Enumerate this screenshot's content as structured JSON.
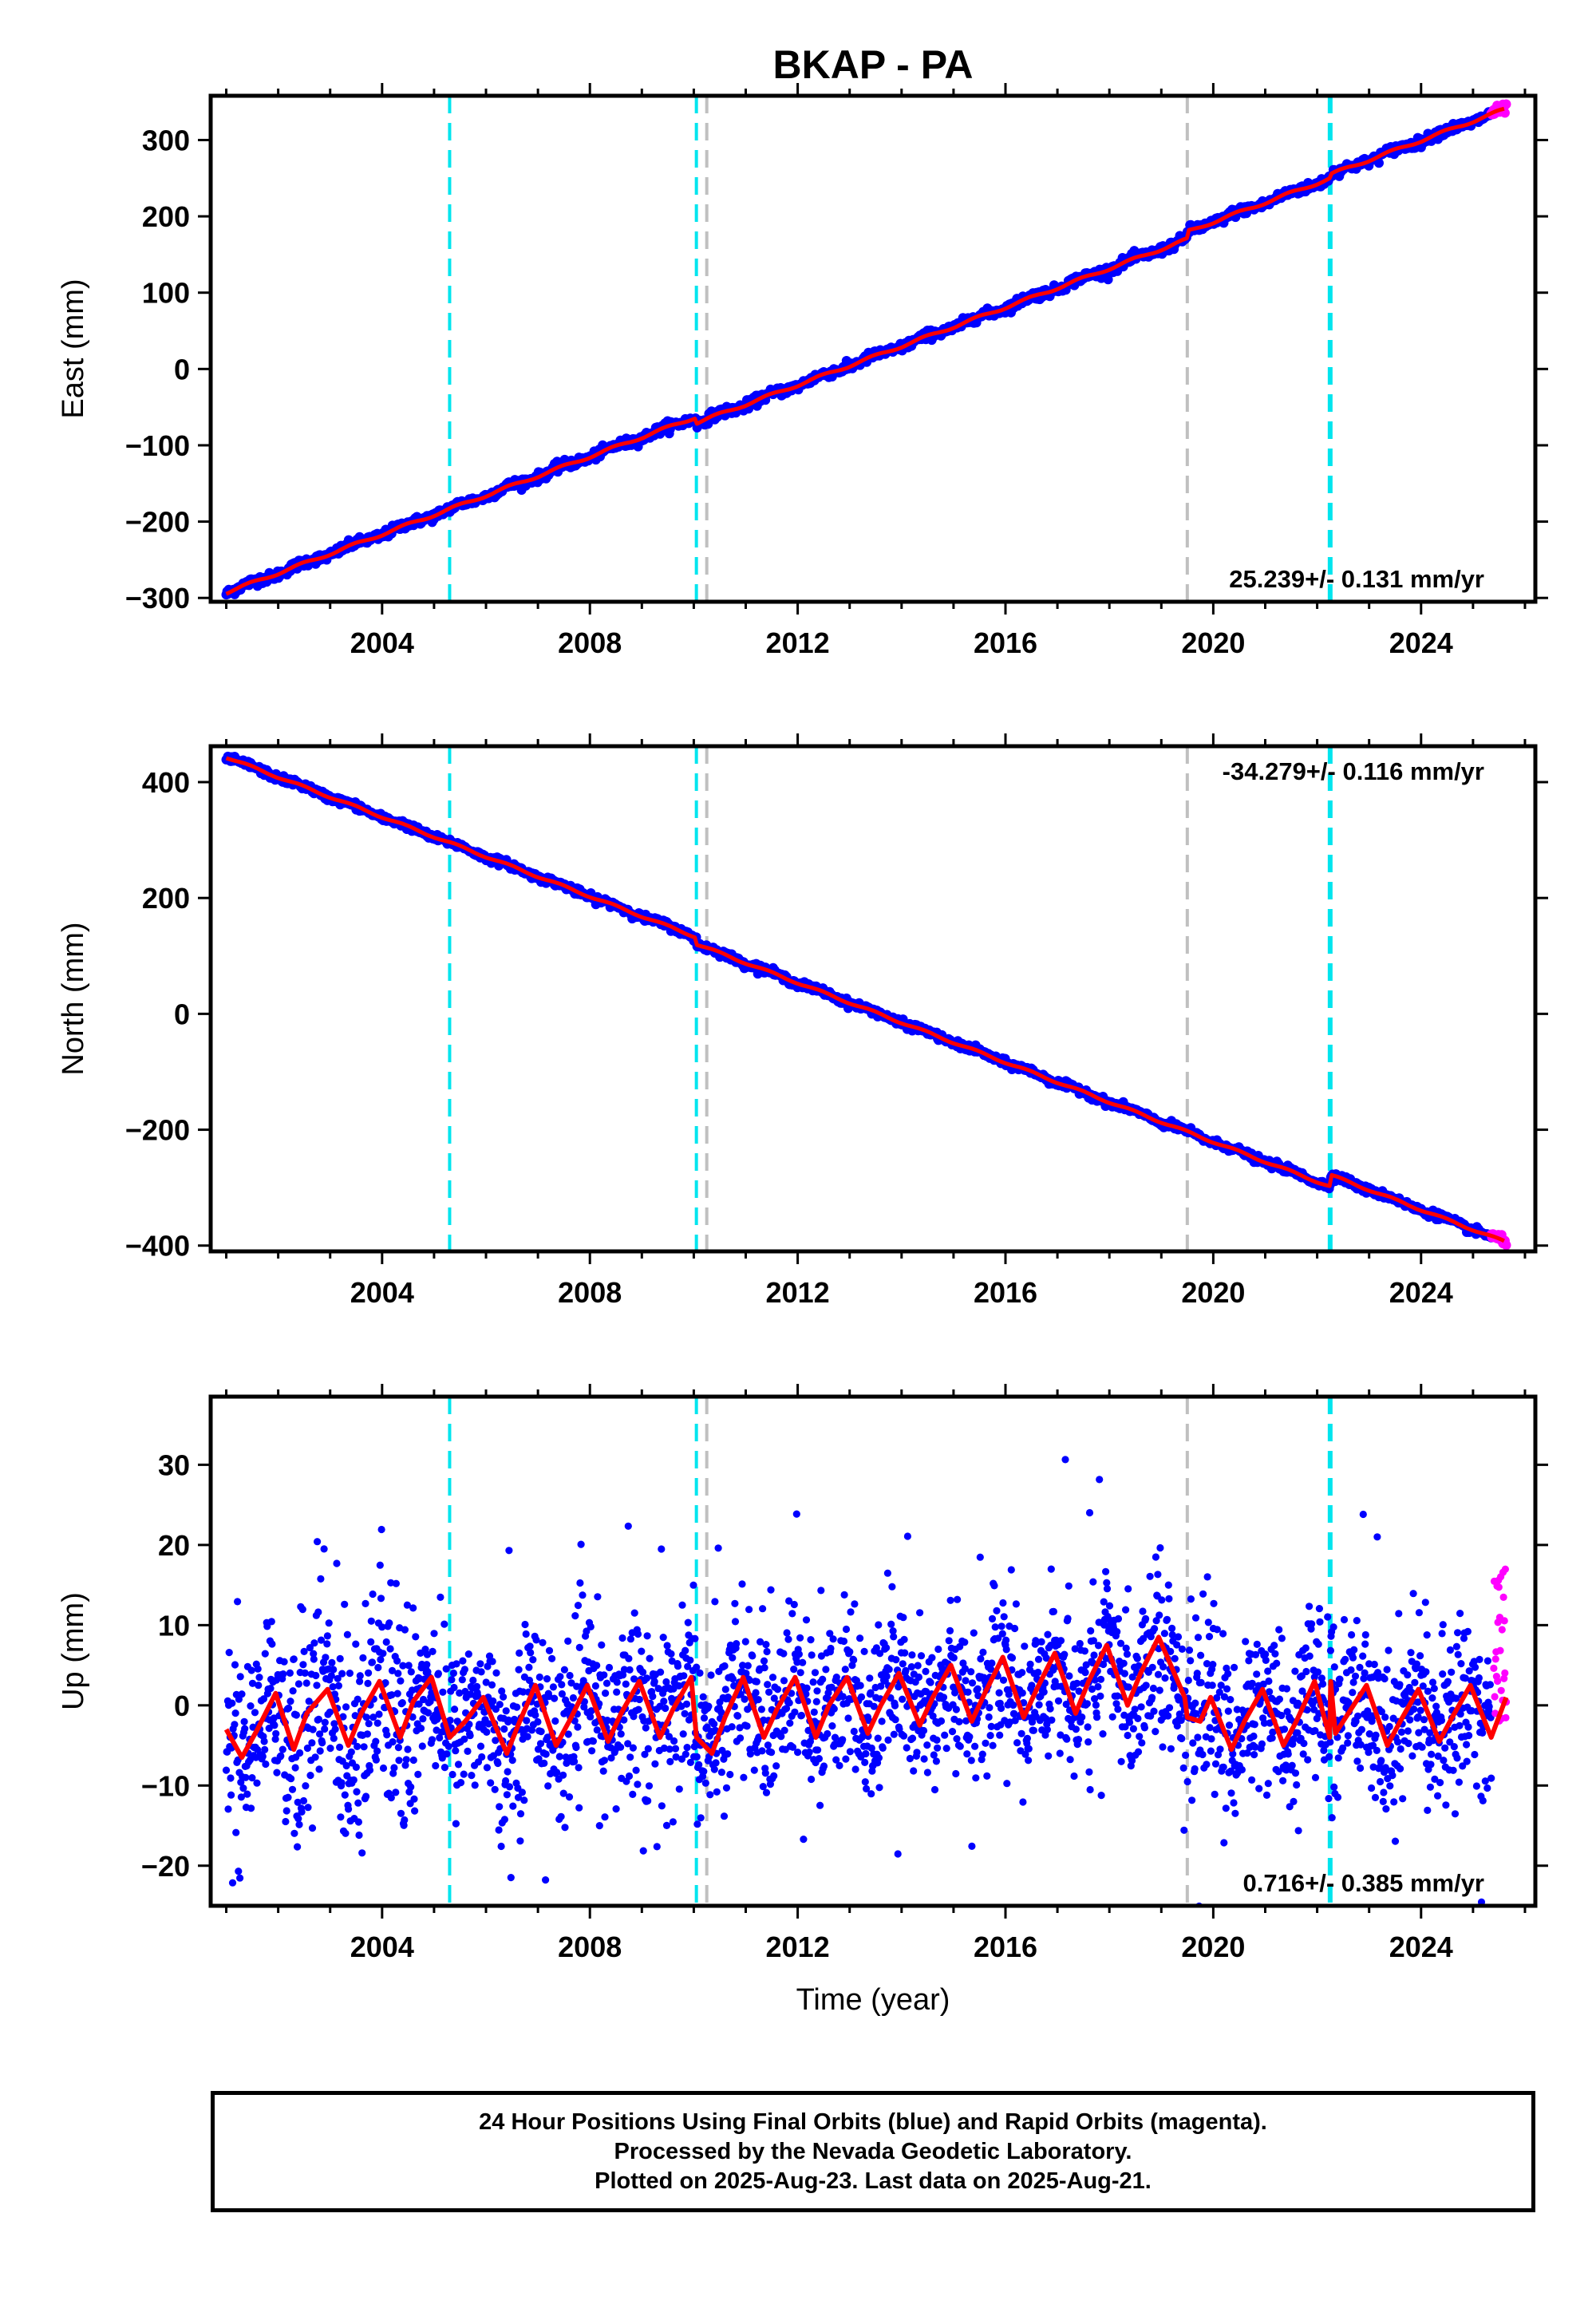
{
  "title": "BKAP - PA",
  "xlabel": "Time (year)",
  "footer": {
    "line1": "24 Hour Positions Using Final Orbits (blue) and Rapid Orbits (magenta).",
    "line2": "Processed by the Nevada Geodetic Laboratory.",
    "line3": "Plotted on 2025-Aug-23. Last data on 2025-Aug-21."
  },
  "colors": {
    "final_orbits": "#0000ff",
    "rapid_orbits": "#ff00ff",
    "model": "#ff0000",
    "equipment_change": "#00e5ee",
    "earthquake": "#c0c0c0"
  },
  "chart_data": [
    {
      "type": "scatter",
      "panel": "east",
      "ylabel": "East (mm)",
      "xlim": [
        2000.7,
        2026.2
      ],
      "ylim": [
        -305,
        358
      ],
      "xticks": [
        2004,
        2008,
        2012,
        2016,
        2020,
        2024
      ],
      "xticklabels": [
        "2004",
        "2008",
        "2012",
        "2016",
        "2020",
        "2024"
      ],
      "yticks": [
        -300,
        -200,
        -100,
        0,
        100,
        200,
        300
      ],
      "yticklabels": [
        "−300",
        "−200",
        "−100",
        "0",
        "100",
        "200",
        "300"
      ],
      "rate_label": "25.239+/- 0.131 mm/yr",
      "rate_label_position": "bottom-right",
      "start": [
        2001.0,
        -293
      ],
      "end": [
        2025.6,
        340
      ],
      "offsets": [
        [
          2010.05,
          -8
        ],
        [
          2019.5,
          10
        ],
        [
          2022.25,
          5
        ]
      ],
      "series": [
        {
          "name": "Final Orbits (blue)",
          "x_range": [
            2001.0,
            2025.35
          ],
          "scatter_mm": 3
        },
        {
          "name": "Rapid Orbits (magenta)",
          "x_range": [
            2025.35,
            2025.64
          ],
          "scatter_mm": 3
        }
      ]
    },
    {
      "type": "scatter",
      "panel": "north",
      "ylabel": "North (mm)",
      "xlim": [
        2000.7,
        2026.2
      ],
      "ylim": [
        -410,
        462
      ],
      "xticks": [
        2004,
        2008,
        2012,
        2016,
        2020,
        2024
      ],
      "xticklabels": [
        "2004",
        "2008",
        "2012",
        "2016",
        "2020",
        "2024"
      ],
      "yticks": [
        -400,
        -200,
        0,
        200,
        400
      ],
      "yticklabels": [
        "−400",
        "−200",
        "0",
        "200",
        "400"
      ],
      "rate_label": "-34.279+/- 0.116 mm/yr",
      "rate_label_position": "top-right",
      "start": [
        2001.0,
        443
      ],
      "end": [
        2025.6,
        -393
      ],
      "offsets": [
        [
          2010.05,
          -12
        ],
        [
          2022.25,
          20
        ]
      ],
      "series": [
        {
          "name": "Final Orbits (blue)",
          "x_range": [
            2001.0,
            2025.35
          ],
          "scatter_mm": 3
        },
        {
          "name": "Rapid Orbits (magenta)",
          "x_range": [
            2025.35,
            2025.64
          ],
          "scatter_mm": 3
        }
      ]
    },
    {
      "type": "scatter",
      "panel": "up",
      "ylabel": "Up (mm)",
      "xlim": [
        2000.7,
        2026.2
      ],
      "ylim": [
        -25,
        38.5
      ],
      "xticks": [
        2004,
        2008,
        2012,
        2016,
        2020,
        2024
      ],
      "xticklabels": [
        "2004",
        "2008",
        "2012",
        "2016",
        "2020",
        "2024"
      ],
      "yticks": [
        -20,
        -10,
        0,
        10,
        20,
        30
      ],
      "yticklabels": [
        "−20",
        "−10",
        "0",
        "10",
        "20",
        "30"
      ],
      "rate_label": "0.716+/- 0.385 mm/yr",
      "rate_label_position": "bottom-right",
      "model_trace": [
        [
          2001.0,
          -3.0
        ],
        [
          2001.3,
          -6.5
        ],
        [
          2001.6,
          -3.0
        ],
        [
          2001.95,
          1.5
        ],
        [
          2002.3,
          -5.5
        ],
        [
          2002.55,
          -1.0
        ],
        [
          2002.95,
          2.0
        ],
        [
          2003.35,
          -5.0
        ],
        [
          2003.6,
          -1.0
        ],
        [
          2003.95,
          3.0
        ],
        [
          2004.35,
          -4.0
        ],
        [
          2004.6,
          0.5
        ],
        [
          2004.95,
          3.5
        ],
        [
          2005.3,
          -4.0
        ],
        [
          2005.6,
          -2.0
        ],
        [
          2005.95,
          1.0
        ],
        [
          2006.4,
          -6.0
        ],
        [
          2006.65,
          -2.0
        ],
        [
          2006.95,
          2.5
        ],
        [
          2007.35,
          -5.0
        ],
        [
          2007.6,
          -2.0
        ],
        [
          2007.95,
          2.5
        ],
        [
          2008.35,
          -4.5
        ],
        [
          2008.6,
          -1.0
        ],
        [
          2008.95,
          3.0
        ],
        [
          2009.35,
          -4.0
        ],
        [
          2009.6,
          -0.5
        ],
        [
          2009.95,
          3.5
        ],
        [
          2010.05,
          -4.0
        ],
        [
          2010.35,
          -6.0
        ],
        [
          2010.6,
          -1.5
        ],
        [
          2010.95,
          3.5
        ],
        [
          2011.35,
          -4.0
        ],
        [
          2011.6,
          -0.5
        ],
        [
          2011.95,
          3.5
        ],
        [
          2012.35,
          -4.0
        ],
        [
          2012.6,
          0.0
        ],
        [
          2012.95,
          3.5
        ],
        [
          2013.35,
          -3.5
        ],
        [
          2013.6,
          0.0
        ],
        [
          2013.95,
          4.0
        ],
        [
          2014.35,
          -2.5
        ],
        [
          2014.6,
          1.0
        ],
        [
          2014.95,
          5.0
        ],
        [
          2015.35,
          -2.0
        ],
        [
          2015.6,
          1.5
        ],
        [
          2015.95,
          6.0
        ],
        [
          2016.35,
          -1.5
        ],
        [
          2016.6,
          2.0
        ],
        [
          2016.95,
          6.5
        ],
        [
          2017.35,
          -1.0
        ],
        [
          2017.6,
          3.0
        ],
        [
          2017.95,
          7.5
        ],
        [
          2018.35,
          0.0
        ],
        [
          2018.6,
          4.0
        ],
        [
          2018.95,
          8.5
        ],
        [
          2019.45,
          1.0
        ],
        [
          2019.5,
          -1.5
        ],
        [
          2019.75,
          -2.0
        ],
        [
          2019.95,
          1.0
        ],
        [
          2020.35,
          -5.5
        ],
        [
          2020.6,
          -2.0
        ],
        [
          2020.95,
          2.0
        ],
        [
          2021.35,
          -5.0
        ],
        [
          2021.6,
          -2.0
        ],
        [
          2021.95,
          3.0
        ],
        [
          2022.24,
          -4.0
        ],
        [
          2022.26,
          3.0
        ],
        [
          2022.35,
          -3.5
        ],
        [
          2022.6,
          -1.0
        ],
        [
          2022.95,
          2.5
        ],
        [
          2023.35,
          -5.0
        ],
        [
          2023.6,
          -2.0
        ],
        [
          2023.95,
          2.0
        ],
        [
          2024.35,
          -4.5
        ],
        [
          2024.6,
          -1.5
        ],
        [
          2024.95,
          2.5
        ],
        [
          2025.35,
          -4.0
        ],
        [
          2025.64,
          1.0
        ]
      ],
      "series": [
        {
          "name": "Final Orbits (blue)",
          "x_range": [
            2001.0,
            2025.35
          ],
          "scatter_mm": 5
        },
        {
          "name": "Rapid Orbits (magenta)",
          "x_range": [
            2025.4,
            2025.64
          ],
          "y_range": [
            -2,
            17
          ]
        }
      ]
    }
  ],
  "event_lines": [
    {
      "year": 2005.3,
      "type": "equipment_change"
    },
    {
      "year": 2010.05,
      "type": "equipment_change"
    },
    {
      "year": 2010.25,
      "type": "earthquake"
    },
    {
      "year": 2019.5,
      "type": "earthquake"
    },
    {
      "year": 2022.25,
      "type": "equipment_change"
    }
  ]
}
